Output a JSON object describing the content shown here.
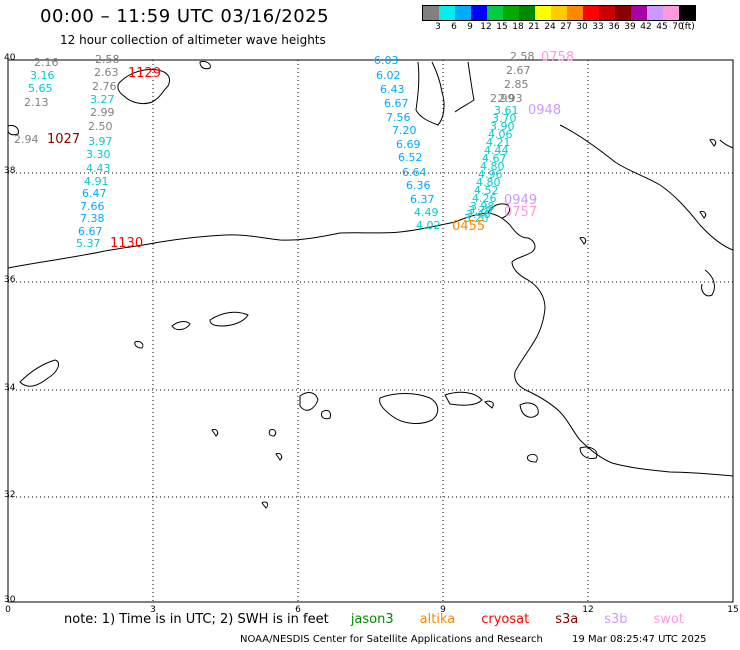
{
  "title": "00:00 – 11:59 UTC 03/16/2025",
  "subtitle": "12 hour collection of altimeter wave heights",
  "legend": {
    "colors": [
      "#808080",
      "#00eeee",
      "#00aaff",
      "#0000ff",
      "#00cc44",
      "#00aa00",
      "#008800",
      "#ffff00",
      "#ffcc00",
      "#ff8800",
      "#ff0000",
      "#cc0000",
      "#880000",
      "#aa00aa",
      "#cc99ff",
      "#ff99dd",
      "#000000"
    ],
    "labels": [
      "3",
      "6",
      "9",
      "12",
      "15",
      "18",
      "21",
      "24",
      "27",
      "30",
      "33",
      "36",
      "39",
      "42",
      "45",
      "70",
      "(ft)"
    ]
  },
  "axes": {
    "lon_ticks": [
      "0",
      "3",
      "6",
      "9",
      "12",
      "15"
    ],
    "lat_ticks": [
      "40",
      "38",
      "36",
      "34",
      "32",
      "30"
    ]
  },
  "wave_heights": [
    {
      "v": "2.16",
      "c": "#808080"
    },
    {
      "v": "2.58",
      "c": "#808080"
    },
    {
      "v": "3.16",
      "c": "#00cccc"
    },
    {
      "v": "2.63",
      "c": "#808080"
    },
    {
      "v": "5.65",
      "c": "#00cccc"
    },
    {
      "v": "2.76",
      "c": "#808080"
    },
    {
      "v": "2.13",
      "c": "#808080"
    },
    {
      "v": "3.27",
      "c": "#00cccc"
    },
    {
      "v": "2.99",
      "c": "#808080"
    },
    {
      "v": "2.50",
      "c": "#808080"
    },
    {
      "v": "2.94",
      "c": "#808080"
    },
    {
      "v": "3.97",
      "c": "#00cccc"
    },
    {
      "v": "3.30",
      "c": "#00cccc"
    },
    {
      "v": "4.43",
      "c": "#00cccc"
    },
    {
      "v": "4.91",
      "c": "#00cccc"
    },
    {
      "v": "6.47",
      "c": "#00aaff"
    },
    {
      "v": "7.66",
      "c": "#00aaff"
    },
    {
      "v": "7.38",
      "c": "#00aaff"
    },
    {
      "v": "6.67",
      "c": "#00aaff"
    },
    {
      "v": "5.37",
      "c": "#00cccc"
    },
    {
      "v": "6.03",
      "c": "#00aaff"
    },
    {
      "v": "6.02",
      "c": "#00aaff"
    },
    {
      "v": "6.43",
      "c": "#00aaff"
    },
    {
      "v": "6.67",
      "c": "#00aaff"
    },
    {
      "v": "7.56",
      "c": "#00aaff"
    },
    {
      "v": "7.20",
      "c": "#00aaff"
    },
    {
      "v": "6.69",
      "c": "#00aaff"
    },
    {
      "v": "6.52",
      "c": "#00aaff"
    },
    {
      "v": "6.64",
      "c": "#00aaff"
    },
    {
      "v": "6.36",
      "c": "#00aaff"
    },
    {
      "v": "6.37",
      "c": "#00aaff"
    },
    {
      "v": "4.49",
      "c": "#00cccc"
    },
    {
      "v": "4.02",
      "c": "#00cccc"
    },
    {
      "v": "2.58",
      "c": "#808080"
    },
    {
      "v": "2.67",
      "c": "#808080"
    },
    {
      "v": "2.85",
      "c": "#808080"
    },
    {
      "v": "2.93",
      "c": "#808080"
    },
    {
      "v": "3.61",
      "c": "#00cccc"
    },
    {
      "v": "3.70",
      "c": "#00cccc"
    },
    {
      "v": "3.90",
      "c": "#00cccc"
    },
    {
      "v": "4.06",
      "c": "#00cccc"
    },
    {
      "v": "4.21",
      "c": "#00cccc"
    },
    {
      "v": "4.44",
      "c": "#00cccc"
    },
    {
      "v": "4.67",
      "c": "#00cccc"
    },
    {
      "v": "4.80",
      "c": "#00cccc"
    },
    {
      "v": "4.96",
      "c": "#00cccc"
    },
    {
      "v": "4.80",
      "c": "#00cccc"
    },
    {
      "v": "4.52",
      "c": "#00cccc"
    },
    {
      "v": "4.26",
      "c": "#00cccc"
    },
    {
      "v": "3.98",
      "c": "#00cccc"
    },
    {
      "v": "3.70",
      "c": "#00cccc"
    },
    {
      "v": "3.46",
      "c": "#00cccc"
    },
    {
      "v": "3.20",
      "c": "#00cccc"
    },
    {
      "v": "2.99",
      "c": "#808080"
    }
  ],
  "pass_times": [
    {
      "v": "1129",
      "c": "#ff0000"
    },
    {
      "v": "1027",
      "c": "#880000"
    },
    {
      "v": "1130",
      "c": "#ff0000"
    },
    {
      "v": "0758",
      "c": "#ff99dd"
    },
    {
      "v": "0948",
      "c": "#cc99ff"
    },
    {
      "v": "0949",
      "c": "#cc99ff"
    },
    {
      "v": "0757",
      "c": "#ff99dd"
    },
    {
      "v": "0455",
      "c": "#ff8800"
    }
  ],
  "note": {
    "text": "note:  1) Time is in UTC;  2) SWH is in feet",
    "satellites": [
      {
        "name": "jason3",
        "color": "#008800"
      },
      {
        "name": "altika",
        "color": "#ff8800"
      },
      {
        "name": "cryosat",
        "color": "#ff0000"
      },
      {
        "name": "s3a",
        "color": "#880000"
      },
      {
        "name": "s3b",
        "color": "#cc99ff"
      },
      {
        "name": "swot",
        "color": "#ff99dd"
      }
    ]
  },
  "credit": {
    "org": "NOAA/NESDIS Center for Satellite Applications and Research",
    "timestamp": "19 Mar 08:25:47 UTC 2025"
  }
}
